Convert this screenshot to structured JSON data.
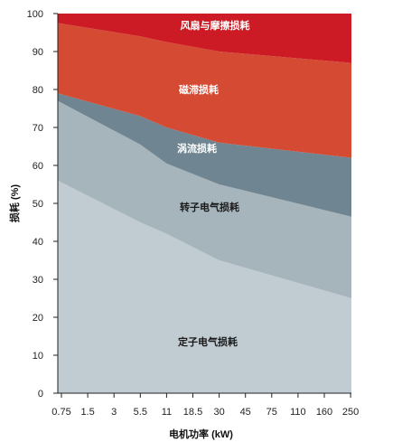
{
  "chart_data": {
    "type": "area",
    "stacked": true,
    "title": "",
    "xlabel": "电机功率 (kW)",
    "ylabel": "损耗 (%)",
    "ylim": [
      0,
      100
    ],
    "yticks": [
      0,
      10,
      20,
      30,
      40,
      50,
      60,
      70,
      80,
      90,
      100
    ],
    "categories": [
      "0.75",
      "1.5",
      "3",
      "5.5",
      "11",
      "18.5",
      "30",
      "45",
      "75",
      "110",
      "160",
      "250"
    ],
    "boundaries_at": [
      "0.75",
      "5.5",
      "11",
      "30",
      "160"
    ],
    "series": [
      {
        "name": "定子电气损耗",
        "top": [
          56,
          45,
          42,
          35,
          25
        ],
        "color": "#c1ccd2",
        "label_dark": true
      },
      {
        "name": "转子电气损耗",
        "top": [
          77,
          65.5,
          60.5,
          55,
          46.5
        ],
        "color": "#a6b5bc",
        "label_dark": true
      },
      {
        "name": "涡流损耗",
        "top": [
          79,
          73,
          70,
          66,
          62
        ],
        "color": "#6f8591",
        "label_dark": false
      },
      {
        "name": "磁滞损耗",
        "top": [
          97.5,
          94,
          92.5,
          90,
          87
        ],
        "color": "#d54a33",
        "label_dark": false
      },
      {
        "name": "风扇与摩擦损耗",
        "top": [
          100,
          100,
          100,
          100,
          100
        ],
        "color": "#cc1b24",
        "label_dark": false
      }
    ],
    "grid": false,
    "legend": "none"
  }
}
